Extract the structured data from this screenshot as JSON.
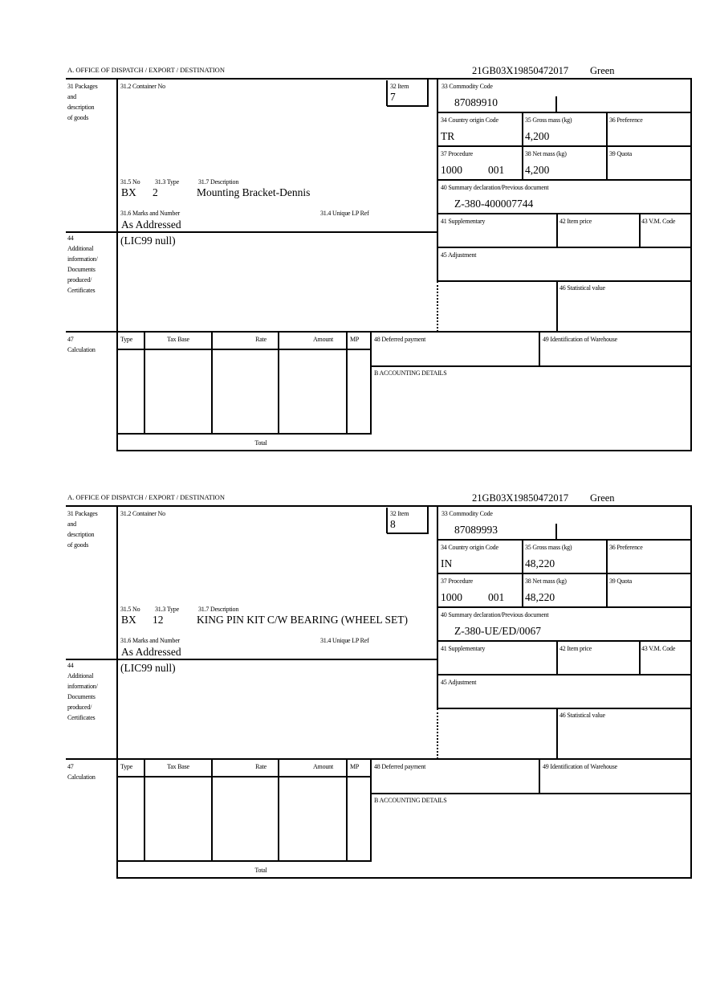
{
  "labels": {
    "office": "A. OFFICE OF DISPATCH / EXPORT / DESTINATION",
    "l31": [
      "31 Packages",
      "and",
      "description",
      "of goods"
    ],
    "l31_2": "31.2 Container No",
    "l32": "32 Item",
    "l31_5": "31.5 No",
    "l31_3": "31.3 Type",
    "l31_7": "31.7 Description",
    "l31_6": "31.6 Marks and Number",
    "l31_4": "31.4 Unique LP Ref",
    "l33": "33 Commodity Code",
    "l34": "34 Country origin Code",
    "l35": "35 Gross mass (kg)",
    "l36": "36 Preference",
    "l37": "37 Procedure",
    "l38": "38 Net mass (kg)",
    "l39": "39 Quota",
    "l40": "40 Summary declaration/Previous document",
    "l41": "41 Supplementary",
    "l42": "42 Item price",
    "l43": "43 V.M. Code",
    "l44": [
      "44",
      "Additional",
      "information/",
      "Documents",
      "produced/",
      "Certificates"
    ],
    "l45": "45 Adjustment",
    "l46": "46 Statistical value",
    "l47": [
      "47",
      "Calculation"
    ],
    "calc_headers": [
      "Type",
      "Tax Base",
      "Rate",
      "Amount",
      "MP"
    ],
    "total": "Total",
    "l48": "48 Deferred payment",
    "l49": "49 Identification of Warehouse",
    "lB": "B ACCOUNTING DETAILS"
  },
  "forms": [
    {
      "reference": "21GB03X19850472017",
      "route": "Green",
      "item": "7",
      "package_kind": "BX",
      "package_count": "2",
      "description": "Mounting Bracket-Dennis",
      "marks": "As Addressed",
      "additional_info": "(LIC99 null)",
      "commodity_code": "87089910",
      "country_origin": "TR",
      "gross_mass": "4,200",
      "procedure": "1000",
      "procedure_additional": "001",
      "net_mass": "4,200",
      "previous_document": "Z-380-400007744"
    },
    {
      "reference": "21GB03X19850472017",
      "route": "Green",
      "item": "8",
      "package_kind": "BX",
      "package_count": "12",
      "description": "KING PIN KIT C/W BEARING (WHEEL SET)",
      "marks": "As Addressed",
      "additional_info": "(LIC99 null)",
      "commodity_code": "87089993",
      "country_origin": "IN",
      "gross_mass": "48,220",
      "procedure": "1000",
      "procedure_additional": "001",
      "net_mass": "48,220",
      "previous_document": "Z-380-UE/ED/0067"
    }
  ]
}
